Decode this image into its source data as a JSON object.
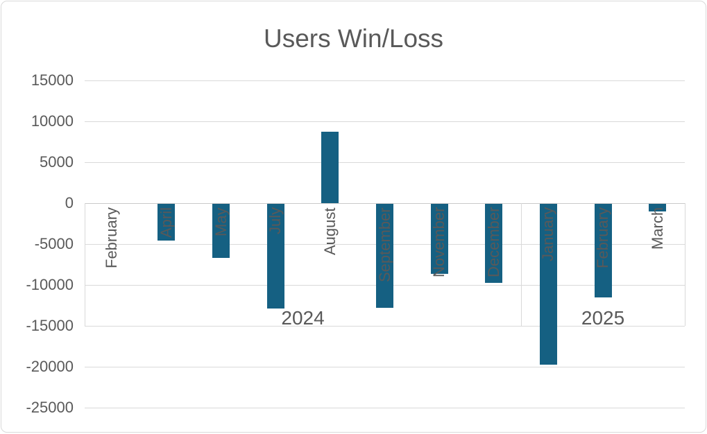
{
  "title": "Users Win/Loss",
  "colors": {
    "bar": "#156082",
    "text": "#595959",
    "gridline": "#d9d9d9",
    "axis_line": "#c9c9c9",
    "frame_border": "#d9d9d9"
  },
  "chart_data": {
    "type": "bar",
    "title": "Users Win/Loss",
    "categories": [
      "February",
      "April",
      "May",
      "July",
      "August",
      "September",
      "November",
      "December",
      "January",
      "February",
      "March"
    ],
    "values": [
      0,
      -4500,
      -6600,
      -12800,
      8700,
      -12700,
      -8600,
      -9700,
      -19700,
      -11400,
      -900
    ],
    "groups": [
      {
        "label": "2024",
        "span": 8
      },
      {
        "label": "2025",
        "span": 3
      }
    ],
    "yticks": [
      15000,
      10000,
      5000,
      0,
      -5000,
      -10000,
      -15000,
      -20000,
      -25000
    ],
    "ylim": [
      -25000,
      15000
    ],
    "ytick_step": 5000,
    "xlabel": "",
    "ylabel": "",
    "grid": true,
    "legend": false,
    "bar_color": "#156082",
    "category_label_rotation_deg": -90
  }
}
